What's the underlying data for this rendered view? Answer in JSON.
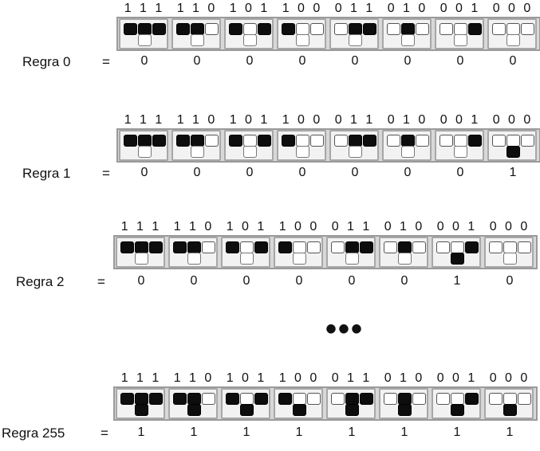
{
  "patterns": [
    "1 1 1",
    "1 1 0",
    "1 0 1",
    "1 0 0",
    "0 1 1",
    "0 1 0",
    "0 0 1",
    "0 0 0"
  ],
  "equals": "=",
  "ellipsis": "•••",
  "rules": [
    {
      "label": "Regra 0",
      "outputs": [
        "0",
        "0",
        "0",
        "0",
        "0",
        "0",
        "0",
        "0"
      ]
    },
    {
      "label": "Regra 1",
      "outputs": [
        "0",
        "0",
        "0",
        "0",
        "0",
        "0",
        "0",
        "1"
      ]
    },
    {
      "label": "Regra 2",
      "outputs": [
        "0",
        "0",
        "0",
        "0",
        "0",
        "0",
        "1",
        "0"
      ]
    },
    {
      "label": "Regra 255",
      "outputs": [
        "1",
        "1",
        "1",
        "1",
        "1",
        "1",
        "1",
        "1"
      ]
    }
  ]
}
